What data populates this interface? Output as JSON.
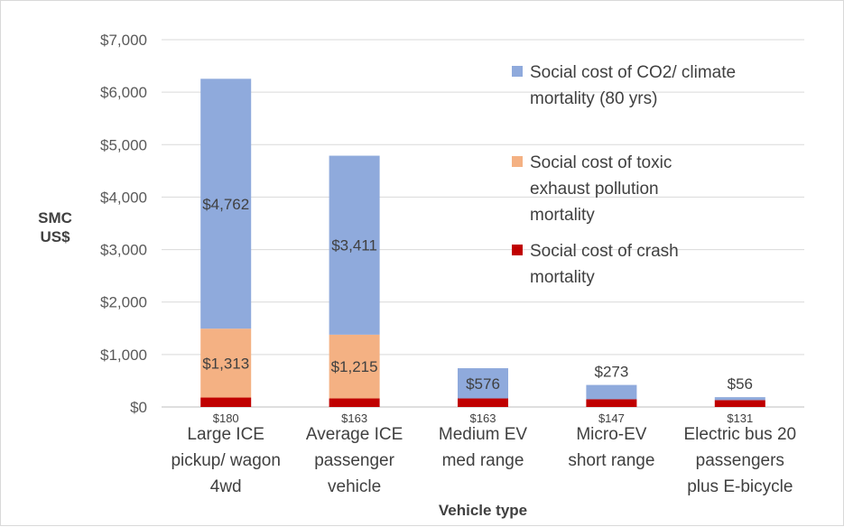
{
  "chart_data": {
    "type": "bar",
    "stacked": true,
    "categories": [
      [
        "Large ICE",
        "pickup/ wagon",
        "4wd"
      ],
      [
        "Average ICE",
        "passenger",
        "vehicle"
      ],
      [
        "Medium EV",
        "med range"
      ],
      [
        "Micro-EV",
        "short range"
      ],
      [
        "Electric bus 20",
        "passengers",
        "plus E-bicycle"
      ]
    ],
    "series": [
      {
        "name": "Social cost of crash mortality",
        "legend_lines": [
          "Social cost of crash",
          "mortality"
        ],
        "color": "#c00000",
        "values": [
          180,
          163,
          163,
          147,
          131
        ],
        "labels": [
          "$180",
          "$163",
          "$163",
          "$147",
          "$131"
        ]
      },
      {
        "name": "Social cost of toxic exhaust pollution mortality",
        "legend_lines": [
          "Social cost of toxic",
          "exhaust pollution",
          "mortality"
        ],
        "color": "#f4b183",
        "values": [
          1313,
          1215,
          0,
          0,
          0
        ],
        "labels": [
          "$1,313",
          "$1,215",
          "",
          "",
          ""
        ]
      },
      {
        "name": "Social cost of CO2/ climate mortality (80 yrs)",
        "legend_lines": [
          "Social cost of CO2/ climate",
          "mortality (80 yrs)"
        ],
        "color": "#8faadc",
        "values": [
          4762,
          3411,
          576,
          273,
          56
        ],
        "labels": [
          "$4,762",
          "$3,411",
          "$576",
          "$273",
          "$56"
        ]
      }
    ],
    "ylim": [
      0,
      7000
    ],
    "yticks": [
      0,
      1000,
      2000,
      3000,
      4000,
      5000,
      6000,
      7000
    ],
    "ytick_labels": [
      "$0",
      "$1,000",
      "$2,000",
      "$3,000",
      "$4,000",
      "$5,000",
      "$6,000",
      "$7,000"
    ],
    "ylabel": [
      "SMC",
      "US$"
    ],
    "xlabel": "Vehicle type",
    "grid": true,
    "legend_position": "right"
  }
}
